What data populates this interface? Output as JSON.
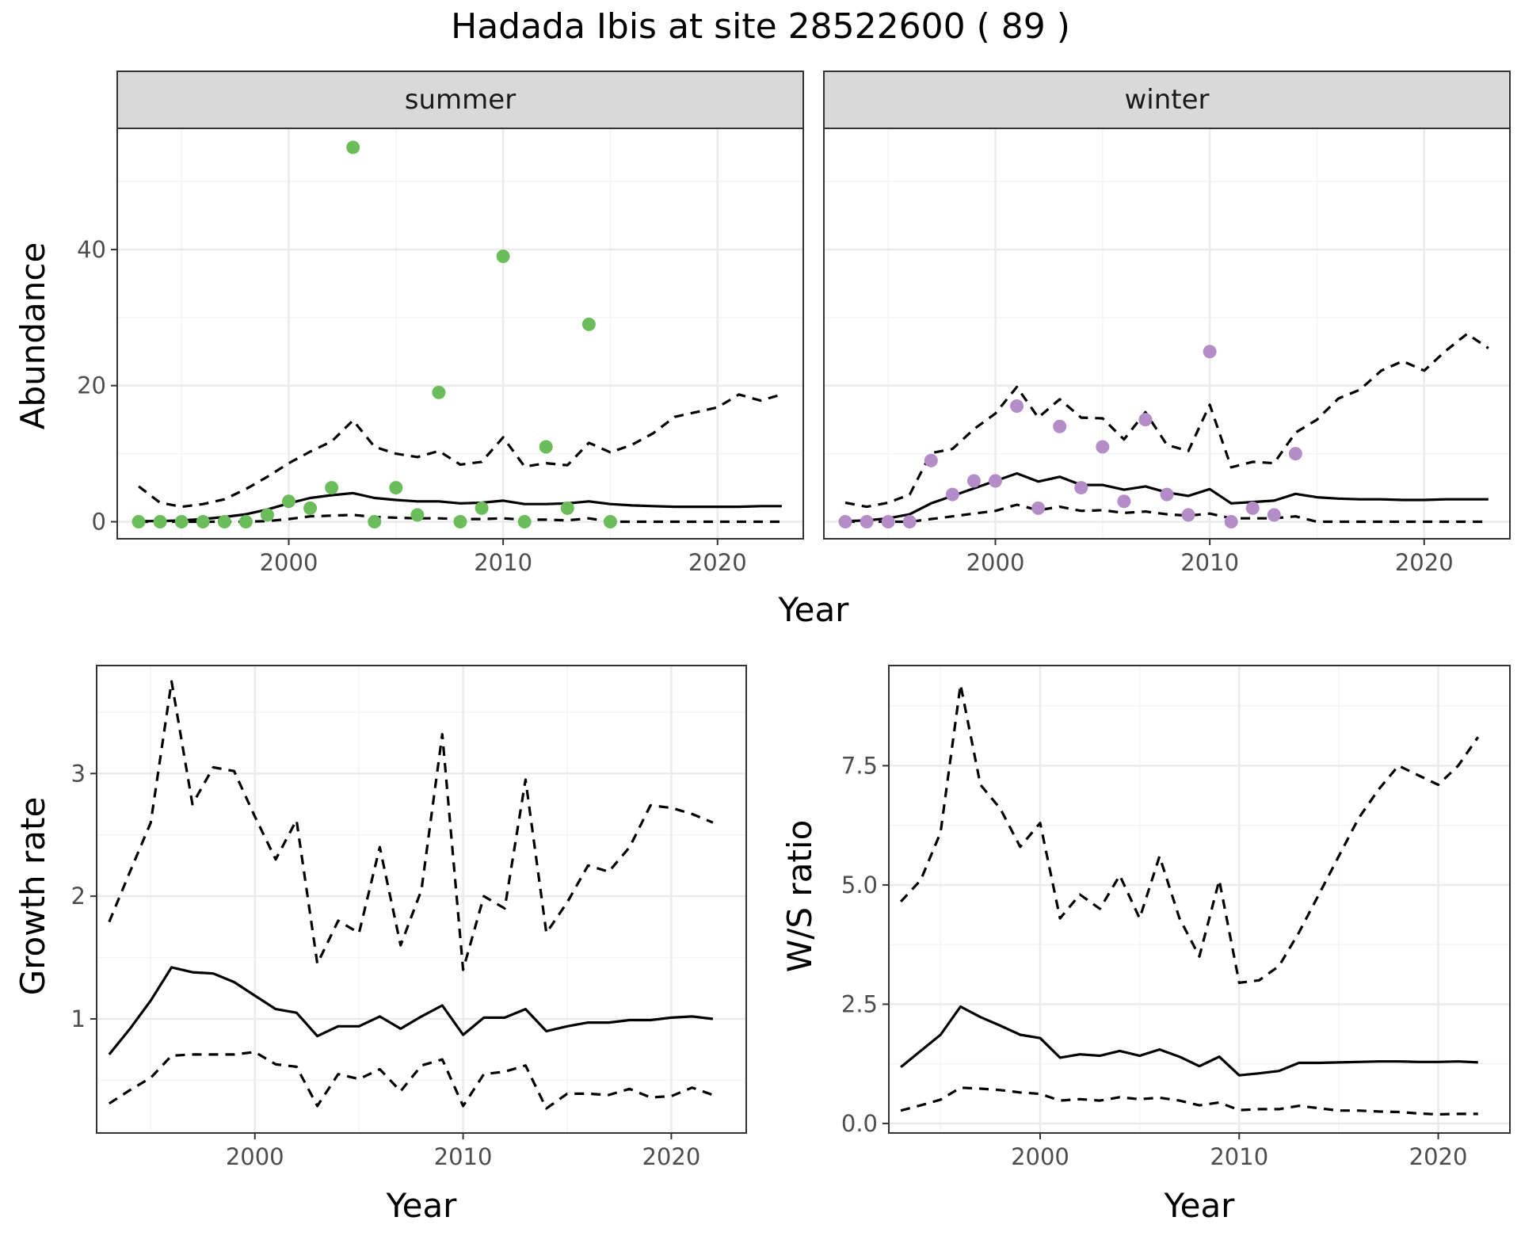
{
  "title": "Hadada Ibis at site 28522600 ( 89 )",
  "colors": {
    "summer_points": "#6ABD5A",
    "winter_points": "#B48CC8",
    "line": "#000000",
    "grid_major": "#EBEBEB",
    "grid_minor": "#F4F4F4",
    "strip_bg": "#D9D9D9",
    "panel_border": "#333333"
  },
  "chart_data": [
    {
      "type": "scatter",
      "panel": "abundance",
      "facets": [
        "summer",
        "winter"
      ],
      "xlabel": "Year",
      "ylabel": "Abundance",
      "xlim": [
        1992,
        2024
      ],
      "ylim": [
        -2.5,
        57.8
      ],
      "xticks": [
        2000,
        2010,
        2020
      ],
      "yticks": [
        0,
        20,
        40
      ],
      "legend": "none",
      "summer": {
        "points": {
          "x": [
            1993,
            1994,
            1995,
            1996,
            1997,
            1998,
            1999,
            2000,
            2001,
            2002,
            2003,
            2004,
            2005,
            2006,
            2007,
            2008,
            2009,
            2010,
            2011,
            2012,
            2013,
            2014,
            2015
          ],
          "y": [
            0,
            0,
            0,
            0,
            0,
            0,
            1,
            3,
            2,
            5,
            55,
            0,
            5,
            1,
            19,
            0,
            2,
            39,
            0,
            11,
            2,
            29,
            0
          ]
        },
        "x": [
          1993,
          1994,
          1995,
          1996,
          1997,
          1998,
          1999,
          2000,
          2001,
          2002,
          2003,
          2004,
          2005,
          2006,
          2007,
          2008,
          2009,
          2010,
          2011,
          2012,
          2013,
          2014,
          2015,
          2016,
          2017,
          2018,
          2019,
          2020,
          2021,
          2022,
          2023
        ],
        "fit": [
          0.1,
          0.1,
          0.2,
          0.4,
          0.7,
          1.1,
          1.8,
          2.7,
          3.5,
          3.9,
          4.2,
          3.5,
          3.2,
          3.0,
          3.0,
          2.7,
          2.8,
          3.1,
          2.6,
          2.6,
          2.7,
          3.0,
          2.6,
          2.4,
          2.3,
          2.2,
          2.2,
          2.2,
          2.2,
          2.3,
          2.3
        ],
        "upper": [
          5.2,
          2.8,
          2.2,
          2.6,
          3.3,
          4.8,
          6.6,
          8.6,
          10.3,
          11.8,
          14.9,
          11.0,
          10.0,
          9.5,
          10.4,
          8.4,
          8.8,
          12.4,
          8.1,
          8.6,
          8.3,
          11.6,
          10.2,
          11.3,
          13.0,
          15.4,
          16.1,
          16.8,
          18.7,
          17.8,
          18.7
        ],
        "lower": [
          0,
          0,
          0,
          0,
          0,
          0,
          0.1,
          0.4,
          0.8,
          0.9,
          1.0,
          0.7,
          0.6,
          0.5,
          0.5,
          0.4,
          0.4,
          0.5,
          0.3,
          0.3,
          0.2,
          0.5,
          0,
          0,
          0,
          0,
          0,
          0,
          0,
          0,
          0
        ]
      },
      "winter": {
        "points": {
          "x": [
            1993,
            1994,
            1995,
            1996,
            1997,
            1998,
            1999,
            2000,
            2001,
            2002,
            2003,
            2004,
            2005,
            2006,
            2007,
            2008,
            2009,
            2010,
            2011,
            2012,
            2013,
            2014
          ],
          "y": [
            0,
            0,
            0,
            0,
            9,
            4,
            6,
            6,
            17,
            2,
            14,
            5,
            11,
            3,
            15,
            4,
            1,
            25,
            0,
            2,
            1,
            10
          ]
        },
        "x": [
          1993,
          1994,
          1995,
          1996,
          1997,
          1998,
          1999,
          2000,
          2001,
          2002,
          2003,
          2004,
          2005,
          2006,
          2007,
          2008,
          2009,
          2010,
          2011,
          2012,
          2013,
          2014,
          2015,
          2016,
          2017,
          2018,
          2019,
          2020,
          2021,
          2022,
          2023
        ],
        "fit": [
          0.1,
          0.2,
          0.5,
          1.1,
          2.7,
          3.8,
          4.9,
          6.0,
          7.1,
          5.9,
          6.6,
          5.4,
          5.4,
          4.7,
          5.2,
          4.3,
          3.8,
          4.8,
          2.7,
          2.9,
          3.1,
          4.1,
          3.6,
          3.4,
          3.3,
          3.3,
          3.2,
          3.2,
          3.3,
          3.3,
          3.3
        ],
        "upper": [
          2.8,
          2.2,
          2.8,
          4.0,
          10.1,
          10.7,
          13.6,
          15.9,
          19.8,
          15.3,
          18.0,
          15.3,
          15.2,
          12.1,
          16.1,
          11.3,
          10.4,
          17.2,
          8.0,
          8.8,
          8.6,
          13.1,
          15.0,
          18.1,
          19.4,
          22.2,
          23.6,
          22.2,
          25.1,
          27.6,
          25.5
        ],
        "lower": [
          0,
          0,
          0,
          0,
          0.4,
          0.8,
          1.2,
          1.6,
          2.5,
          1.7,
          2.2,
          1.6,
          1.7,
          1.3,
          1.5,
          1.1,
          0.9,
          1.2,
          0.5,
          0.5,
          0.5,
          0.8,
          0,
          0,
          0,
          0,
          0,
          0,
          0,
          0,
          0
        ]
      }
    },
    {
      "type": "line",
      "panel": "growth",
      "xlabel": "Year",
      "ylabel": "Growth rate",
      "xlim": [
        1992.4,
        2023.6
      ],
      "ylim": [
        0.07,
        3.88
      ],
      "xticks": [
        2000,
        2010,
        2020
      ],
      "yticks": [
        1,
        2,
        3
      ],
      "x": [
        1993,
        1994,
        1995,
        1996,
        1997,
        1998,
        1999,
        2000,
        2001,
        2002,
        2003,
        2004,
        2005,
        2006,
        2007,
        2008,
        2009,
        2010,
        2011,
        2012,
        2013,
        2014,
        2015,
        2016,
        2017,
        2018,
        2019,
        2020,
        2021,
        2022
      ],
      "fit": [
        0.71,
        0.92,
        1.15,
        1.42,
        1.38,
        1.37,
        1.3,
        1.19,
        1.08,
        1.05,
        0.86,
        0.94,
        0.94,
        1.02,
        0.92,
        1.02,
        1.11,
        0.87,
        1.01,
        1.01,
        1.08,
        0.9,
        0.94,
        0.97,
        0.97,
        0.99,
        0.99,
        1.01,
        1.02,
        1.0
      ],
      "upper": [
        1.79,
        2.2,
        2.6,
        3.75,
        2.75,
        3.05,
        3.02,
        2.65,
        2.3,
        2.62,
        1.45,
        1.8,
        1.7,
        2.4,
        1.6,
        2.05,
        3.32,
        1.4,
        2.0,
        1.9,
        2.95,
        1.7,
        1.95,
        2.25,
        2.2,
        2.4,
        2.74,
        2.72,
        2.67,
        2.6
      ],
      "lower": [
        0.31,
        0.42,
        0.52,
        0.7,
        0.71,
        0.71,
        0.71,
        0.73,
        0.63,
        0.61,
        0.29,
        0.55,
        0.51,
        0.59,
        0.41,
        0.62,
        0.67,
        0.29,
        0.55,
        0.57,
        0.62,
        0.27,
        0.39,
        0.39,
        0.38,
        0.43,
        0.36,
        0.37,
        0.44,
        0.38
      ]
    },
    {
      "type": "line",
      "panel": "ws_ratio",
      "xlabel": "Year",
      "ylabel": "W/S ratio",
      "xlim": [
        1992.4,
        2023.6
      ],
      "ylim": [
        -0.2,
        9.6
      ],
      "xticks": [
        2000,
        2010,
        2020
      ],
      "yticks": [
        0.0,
        2.5,
        5.0,
        7.5
      ],
      "x": [
        1993,
        1994,
        1995,
        1996,
        1997,
        1998,
        1999,
        2000,
        2001,
        2002,
        2003,
        2004,
        2005,
        2006,
        2007,
        2008,
        2009,
        2010,
        2011,
        2012,
        2013,
        2014,
        2015,
        2016,
        2017,
        2018,
        2019,
        2020,
        2021,
        2022
      ],
      "fit": [
        1.18,
        1.52,
        1.86,
        2.45,
        2.23,
        2.05,
        1.86,
        1.79,
        1.38,
        1.45,
        1.42,
        1.52,
        1.42,
        1.55,
        1.4,
        1.2,
        1.4,
        1.01,
        1.05,
        1.1,
        1.27,
        1.27,
        1.28,
        1.29,
        1.3,
        1.3,
        1.29,
        1.29,
        1.3,
        1.28
      ],
      "upper": [
        4.65,
        5.1,
        6.1,
        9.2,
        7.1,
        6.6,
        5.8,
        6.3,
        4.3,
        4.8,
        4.5,
        5.2,
        4.3,
        5.6,
        4.3,
        3.5,
        5.1,
        2.95,
        3.0,
        3.3,
        4.0,
        4.8,
        5.6,
        6.4,
        7.0,
        7.5,
        7.3,
        7.1,
        7.5,
        8.1
      ],
      "lower": [
        0.27,
        0.38,
        0.5,
        0.75,
        0.73,
        0.7,
        0.65,
        0.62,
        0.48,
        0.51,
        0.48,
        0.55,
        0.51,
        0.54,
        0.48,
        0.38,
        0.44,
        0.28,
        0.3,
        0.3,
        0.37,
        0.32,
        0.27,
        0.27,
        0.25,
        0.24,
        0.21,
        0.19,
        0.2,
        0.2
      ]
    }
  ],
  "facet_labels": {
    "summer": "summer",
    "winter": "winter"
  },
  "tick_text": {
    "x": [
      "2000",
      "2010",
      "2020"
    ],
    "abundance_y": [
      "0",
      "20",
      "40"
    ],
    "growth_y": [
      "1",
      "2",
      "3"
    ],
    "ws_y": [
      "0.0",
      "2.5",
      "5.0",
      "7.5"
    ]
  },
  "axis_titles": {
    "abundance_x": "Year",
    "abundance_y": "Abundance",
    "growth_x": "Year",
    "growth_y": "Growth rate",
    "ws_x": "Year",
    "ws_y": "W/S ratio"
  }
}
